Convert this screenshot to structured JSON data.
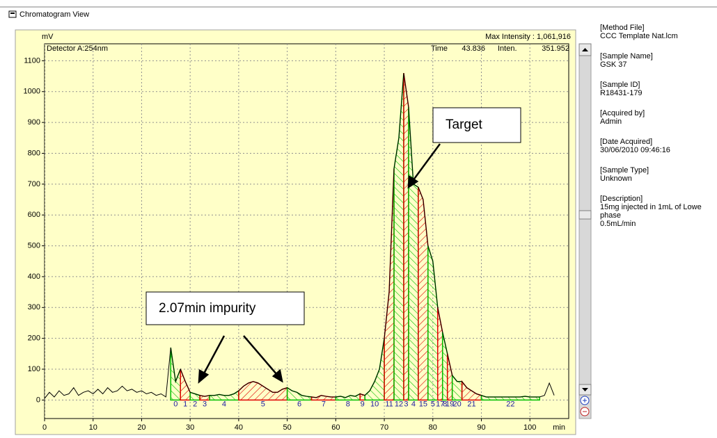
{
  "window": {
    "title": "Chromatogram View"
  },
  "chart_data": {
    "type": "line",
    "y_label": "mV",
    "x_unit": "min",
    "detector": "Detector A:254nm",
    "max_intensity": "Max Intensity : 1,061,916",
    "cursor_time_label": "Time",
    "cursor_time": 43.836,
    "cursor_inten_label": "Inten.",
    "cursor_inten": 351.952,
    "xlim": [
      0,
      108
    ],
    "ylim": [
      -60,
      1155
    ],
    "xticks": [
      0,
      10,
      20,
      30,
      40,
      50,
      60,
      70,
      80,
      90,
      100
    ],
    "yticks": [
      0,
      100,
      200,
      300,
      400,
      500,
      600,
      700,
      800,
      900,
      1000,
      1100
    ],
    "grid": true,
    "x": [
      0,
      1,
      2,
      3,
      4,
      5,
      6,
      7,
      8,
      9,
      10,
      11,
      12,
      13,
      14,
      15,
      16,
      17,
      18,
      19,
      20,
      21,
      22,
      23,
      24,
      25,
      26,
      27,
      28,
      29,
      30,
      31,
      32,
      33,
      34,
      35,
      36,
      37,
      38,
      39,
      40,
      41,
      42,
      43,
      44,
      45,
      46,
      47,
      48,
      49,
      50,
      51,
      52,
      53,
      54,
      55,
      56,
      57,
      58,
      59,
      60,
      61,
      62,
      63,
      64,
      65,
      66,
      67,
      68,
      69,
      70,
      71,
      72,
      73,
      74,
      75,
      76,
      77,
      78,
      79,
      80,
      81,
      82,
      83,
      84,
      85,
      86,
      87,
      88,
      89,
      90,
      91,
      92,
      93,
      94,
      95,
      96,
      97,
      98,
      99,
      100,
      101,
      102,
      103,
      104,
      105
    ],
    "series": [
      {
        "color": "#000000",
        "values": [
          5,
          25,
          10,
          30,
          15,
          20,
          40,
          15,
          25,
          30,
          20,
          35,
          20,
          40,
          25,
          30,
          45,
          30,
          35,
          25,
          30,
          20,
          25,
          15,
          20,
          10,
          170,
          60,
          100,
          60,
          25,
          20,
          15,
          12,
          15,
          15,
          18,
          15,
          15,
          20,
          30,
          45,
          55,
          60,
          55,
          45,
          35,
          25,
          25,
          35,
          40,
          30,
          25,
          15,
          12,
          10,
          8,
          15,
          12,
          10,
          10,
          12,
          8,
          15,
          12,
          20,
          15,
          30,
          60,
          100,
          200,
          350,
          750,
          850,
          1060,
          950,
          700,
          690,
          650,
          500,
          450,
          300,
          220,
          150,
          80,
          60,
          60,
          40,
          30,
          20,
          15,
          10,
          10,
          10,
          10,
          10,
          10,
          10,
          10,
          12,
          10,
          10,
          10,
          15,
          55,
          15
        ]
      }
    ],
    "fractions": [
      {
        "label": "0",
        "start": 26,
        "end": 28,
        "color": "#00c000"
      },
      {
        "label": "1",
        "start": 28,
        "end": 30,
        "color": "#e00000"
      },
      {
        "label": "2",
        "start": 30,
        "end": 32,
        "color": "#00c000"
      },
      {
        "label": "3",
        "start": 32,
        "end": 34,
        "color": "#e00000"
      },
      {
        "label": "4",
        "start": 34,
        "end": 40,
        "color": "#00c000"
      },
      {
        "label": "5",
        "start": 40,
        "end": 50,
        "color": "#e00000"
      },
      {
        "label": "6",
        "start": 50,
        "end": 55,
        "color": "#00c000"
      },
      {
        "label": "7",
        "start": 55,
        "end": 60,
        "color": "#e00000"
      },
      {
        "label": "8",
        "start": 60,
        "end": 65,
        "color": "#00c000"
      },
      {
        "label": "9",
        "start": 65,
        "end": 66,
        "color": "#e00000"
      },
      {
        "label": "10",
        "start": 66,
        "end": 70,
        "color": "#00c000"
      },
      {
        "label": "11",
        "start": 70,
        "end": 72,
        "color": "#e00000"
      },
      {
        "label": "12",
        "start": 72,
        "end": 74,
        "color": "#00c000"
      },
      {
        "label": "3",
        "start": 74,
        "end": 75,
        "color": "#e00000"
      },
      {
        "label": "4",
        "start": 75,
        "end": 77,
        "color": "#00c000"
      },
      {
        "label": "15",
        "start": 77,
        "end": 79,
        "color": "#e00000"
      },
      {
        "label": "5",
        "start": 79,
        "end": 81,
        "color": "#00c000"
      },
      {
        "label": "17",
        "start": 81,
        "end": 82,
        "color": "#e00000"
      },
      {
        "label": "8",
        "start": 82,
        "end": 83,
        "color": "#00c000"
      },
      {
        "label": "19",
        "start": 83,
        "end": 84,
        "color": "#e00000"
      },
      {
        "label": "20",
        "start": 84,
        "end": 86,
        "color": "#00c000"
      },
      {
        "label": "21",
        "start": 86,
        "end": 90,
        "color": "#e00000"
      },
      {
        "label": "22",
        "start": 90,
        "end": 102,
        "color": "#00c000"
      }
    ],
    "annotations": [
      {
        "text": "2.07min impurity"
      },
      {
        "text": "Target"
      }
    ]
  },
  "info": [
    {
      "label": "[Method File]",
      "lines": [
        "CCC Template Nat.lcm"
      ]
    },
    {
      "label": "[Sample Name]",
      "lines": [
        "GSK 37"
      ]
    },
    {
      "label": "[Sample ID]",
      "lines": [
        "R18431-179"
      ]
    },
    {
      "label": "[Acquired by]",
      "lines": [
        "Admin"
      ]
    },
    {
      "label": "[Date Acquired]",
      "lines": [
        "30/06/2010 09:46:16"
      ]
    },
    {
      "label": "[Sample Type]",
      "lines": [
        "Unknown"
      ]
    },
    {
      "label": "[Description]",
      "lines": [
        "15mg injected in 1mL of Lowe",
        "phase",
        "0.5mL/min"
      ]
    }
  ]
}
